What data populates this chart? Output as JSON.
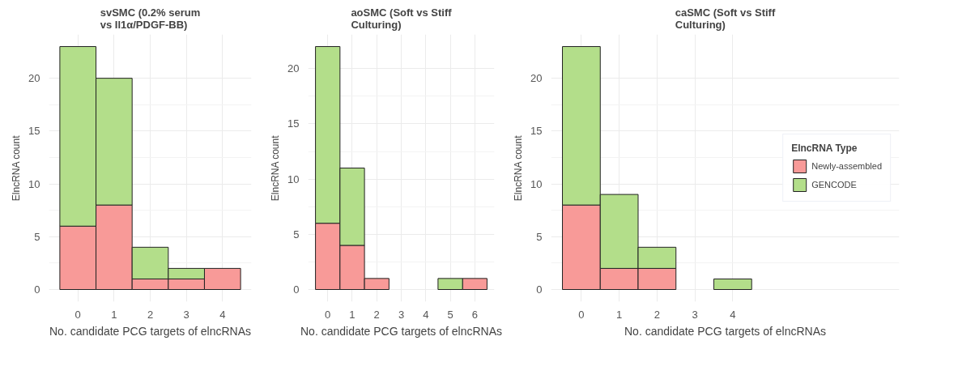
{
  "chart_data": [
    {
      "type": "bar",
      "stacked": true,
      "title": "svSMC (0.2% serum\nvs Il1α/PDGF-BB)",
      "xlabel": "No. candidate PCG targets of elncRNAs",
      "ylabel": "ElncRNA count",
      "categories": [
        "0",
        "1",
        "2",
        "3",
        "4"
      ],
      "ylim": [
        -1.15,
        24.15
      ],
      "yticks": [
        0,
        5,
        10,
        15,
        20
      ],
      "grid": true,
      "series": [
        {
          "color": "#f89a98",
          "values": [
            6,
            8,
            1,
            1,
            2
          ]
        },
        {
          "color": "#b3de8a",
          "values": [
            17,
            12,
            3,
            1,
            0
          ]
        }
      ]
    },
    {
      "type": "bar",
      "stacked": true,
      "title": "aoSMC (Soft vs Stiff\nCulturing)",
      "xlabel": "No. candidate PCG targets of elncRNAs",
      "ylabel": "ElncRNA count",
      "categories": [
        "0",
        "1",
        "2",
        "3",
        "4",
        "5",
        "6"
      ],
      "ylim": [
        -1.1,
        23.1
      ],
      "yticks": [
        0,
        5,
        10,
        15,
        20
      ],
      "grid": true,
      "series": [
        {
          "color": "#f89a98",
          "values": [
            6,
            4,
            1,
            0,
            0,
            0,
            1
          ]
        },
        {
          "color": "#b3de8a",
          "values": [
            16,
            7,
            0,
            0,
            0,
            1,
            0
          ]
        }
      ]
    },
    {
      "type": "bar",
      "stacked": true,
      "title": "caSMC (Soft vs Stiff\nCulturing)",
      "xlabel": "No. candidate PCG targets of elncRNAs",
      "ylabel": "ElncRNA count",
      "categories": [
        "0",
        "1",
        "2",
        "3",
        "4"
      ],
      "ylim": [
        -1.15,
        24.15
      ],
      "yticks": [
        0,
        5,
        10,
        15,
        20
      ],
      "grid": true,
      "legend": "right",
      "legend_title": "ElncRNA Type",
      "series": [
        {
          "name": "Newly-assembled",
          "color": "#f89a98",
          "values": [
            8,
            2,
            2,
            0,
            0
          ]
        },
        {
          "name": "GENCODE",
          "color": "#b3de8a",
          "values": [
            15,
            7,
            2,
            0,
            1
          ]
        }
      ]
    }
  ]
}
